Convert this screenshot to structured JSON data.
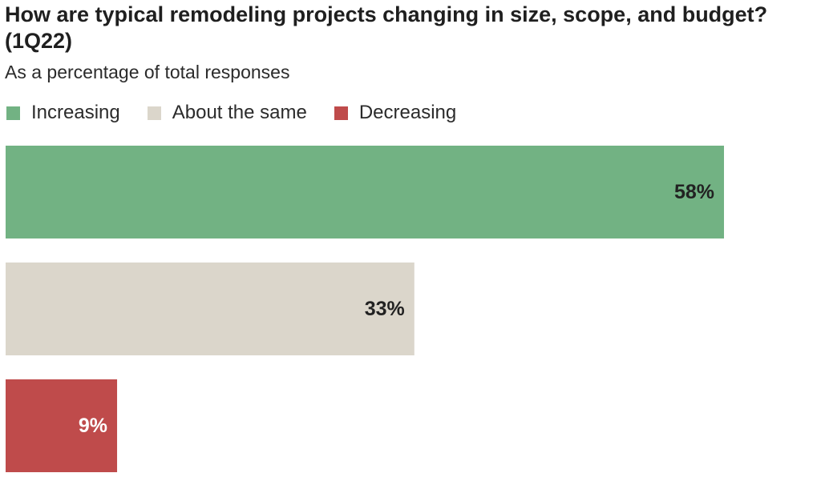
{
  "colors": {
    "increasing": "#72b283",
    "same": "#dbd6cb",
    "decreasing": "#bf4b4b",
    "label_dark": "#222222",
    "label_light": "#ffffff"
  },
  "chart_data": {
    "type": "bar",
    "orientation": "horizontal",
    "title": "How are typical remodeling projects changing in size, scope, and budget? (1Q22)",
    "subtitle": "As a percentage of total responses",
    "legend_position": "top-left",
    "grid": false,
    "xlim": [
      0,
      58
    ],
    "categories": [
      "Increasing",
      "About the same",
      "Decreasing"
    ],
    "values": [
      58,
      33,
      9
    ],
    "data_labels": [
      "58%",
      "33%",
      "9%"
    ],
    "legend": [
      {
        "label": "Increasing",
        "color_key": "increasing"
      },
      {
        "label": "About the same",
        "color_key": "same"
      },
      {
        "label": "Decreasing",
        "color_key": "decreasing"
      }
    ]
  }
}
